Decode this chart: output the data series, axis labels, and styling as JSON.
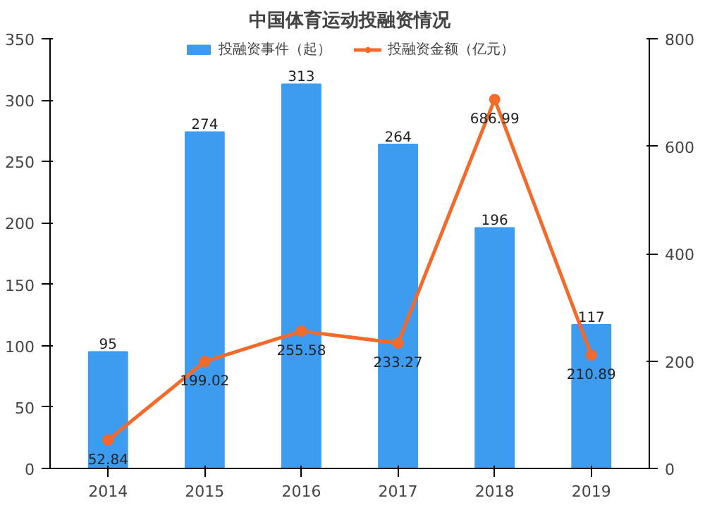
{
  "chart_data": {
    "type": "bar",
    "title": "中国体育运动投融资情况",
    "categories": [
      "2014",
      "2015",
      "2016",
      "2017",
      "2018",
      "2019"
    ],
    "series": [
      {
        "name": "投融资事件（起）",
        "color": "#3e9cf0",
        "values": [
          95,
          274,
          313,
          264,
          196,
          117
        ]
      },
      {
        "name": "投融资金额（亿元）",
        "color": "#f26b2a",
        "type": "line",
        "axis": "y2",
        "marker": "circle",
        "values": [
          52.84,
          199.02,
          255.58,
          233.27,
          686.99,
          210.89
        ]
      }
    ],
    "ylim": [
      0,
      350
    ],
    "yticks": [
      0,
      50,
      100,
      150,
      200,
      250,
      300,
      350
    ],
    "y2lim": [
      0,
      800
    ],
    "y2ticks": [
      0,
      200,
      400,
      600,
      800
    ],
    "data_labels": true,
    "legend": "top",
    "grid": false
  }
}
